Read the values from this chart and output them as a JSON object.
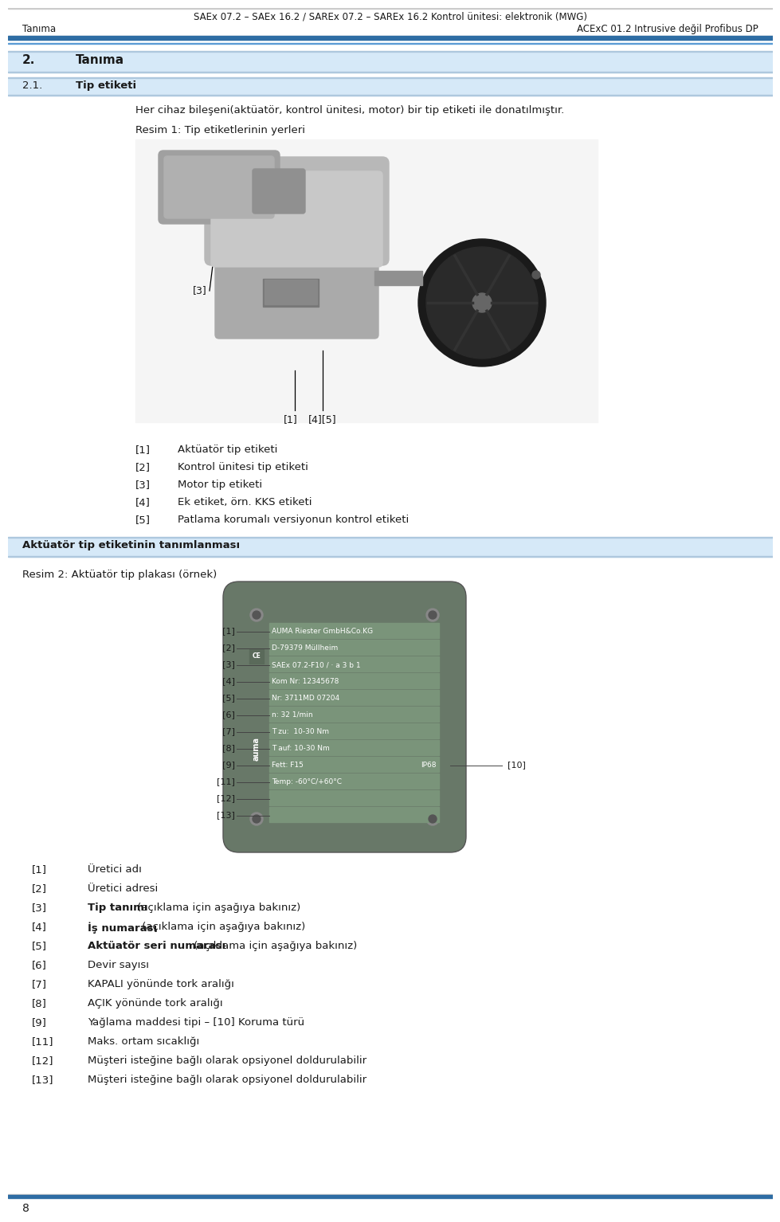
{
  "header_title": "SAEx 07.2 – SAEx 16.2 / SAREx 07.2 – SAREx 16.2 Kontrol ünitesi: elektronik (MWG)",
  "header_subtitle": "ACExC 01.2 Intrusive değil Profibus DP",
  "header_left": "Tanıma",
  "section2_num": "2.",
  "section2_title": "Tanıma",
  "section21_num": "2.1.",
  "section21_title": "Tip etiketi",
  "intro_text": "Her cihaz bileşeni(aktüatör, kontrol ünitesi, motor) bir tip etiketi ile donatılmıştır.",
  "resim1_label": "Resim 1: Tip etiketlerinin yerleri",
  "legend_items": [
    {
      "num": "[1]",
      "text": "Aktüatör tip etiketi"
    },
    {
      "num": "[2]",
      "text": "Kontrol ünitesi tip etiketi"
    },
    {
      "num": "[3]",
      "text": "Motor tip etiketi"
    },
    {
      "num": "[4]",
      "text": "Ek etiket, örn. KKS etiketi"
    },
    {
      "num": "[5]",
      "text": "Patlama korumalı versiyonun kontrol etiketi"
    }
  ],
  "section_aktuator_title": "Aktüatör tip etiketinin tanımlanması",
  "resim2_label": "Resim 2: Aktüatör tip plakası (örnek)",
  "plate_rows": [
    {
      "num": "[1]",
      "left": "AUMA Riester GmbH&Co.KG",
      "right": null
    },
    {
      "num": "[2]",
      "left": "D-79379 Müllheim",
      "right": null
    },
    {
      "num": "[3]",
      "left": "SAEx 07.2-F10 / · a 3 b 1",
      "right": null
    },
    {
      "num": "[4]",
      "left": "Kom Nr: 12345678",
      "right": null
    },
    {
      "num": "[5]",
      "left": "Nr: 3711MD 07204",
      "right": null
    },
    {
      "num": "[6]",
      "left": "n: 32 1/min",
      "right": null
    },
    {
      "num": "[7]",
      "left": "T zu:  10-30 Nm",
      "right": null
    },
    {
      "num": "[8]",
      "left": "T auf: 10-30 Nm",
      "right": null
    },
    {
      "num": "[9]",
      "left": "Fett: F15",
      "right": "IP68"
    },
    {
      "num": "[11]",
      "left": "Temp: -60°C/+60°C",
      "right": null
    },
    {
      "num": "[12]",
      "left": "",
      "right": null
    },
    {
      "num": "[13]",
      "left": "",
      "right": null
    }
  ],
  "bottom_legend": [
    {
      "num": "[1]",
      "bold_text": null,
      "text": "Üretici adı"
    },
    {
      "num": "[2]",
      "bold_text": null,
      "text": "Üretici adresi"
    },
    {
      "num": "[3]",
      "bold_text": "Tip tanımı",
      "text": " (açıklama için aşağıya bakınız)"
    },
    {
      "num": "[4]",
      "bold_text": "İş numarası",
      "text": " (açıklama için aşağıya bakınız)"
    },
    {
      "num": "[5]",
      "bold_text": "Aktüatör seri numarası",
      "text": " (açıklama için aşağıya bakınız)"
    },
    {
      "num": "[6]",
      "bold_text": null,
      "text": "Devir sayısı"
    },
    {
      "num": "[7]",
      "bold_text": null,
      "text": "KAPALI yönünde tork aralığı"
    },
    {
      "num": "[8]",
      "bold_text": null,
      "text": "AÇIK yönünde tork aralığı"
    },
    {
      "num": "[9]",
      "bold_text": null,
      "text": "Yağlama maddesi tipi – [10] Koruma türü"
    },
    {
      "num": "[11]",
      "bold_text": null,
      "text": "Maks. ortam sıcaklığı"
    },
    {
      "num": "[12]",
      "bold_text": null,
      "text": "Müşteri isteğine bağlı olarak opsiyonel doldurulabilir"
    },
    {
      "num": "[13]",
      "bold_text": null,
      "text": "Müşteri isteğine bağlı olarak opsiyonel doldurulabilir"
    }
  ],
  "page_number": "8",
  "bg_color": "#ffffff",
  "header_bg": "#cfe2f3",
  "section_header_bg": "#d6e9f8",
  "blue_line_color": "#2e6da4",
  "plate_dark": "#687868",
  "plate_row_color": "#7a947a",
  "plate_label_color": "#555555"
}
